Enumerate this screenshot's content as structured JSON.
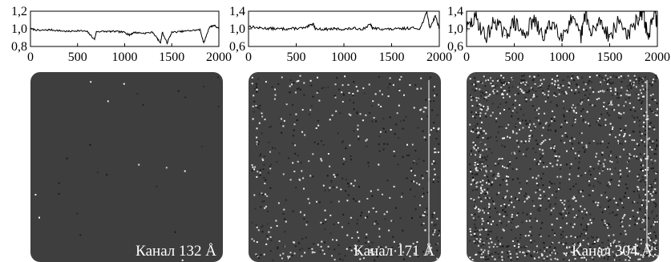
{
  "chart_data": [
    {
      "type": "line",
      "x_range": [
        0,
        2000
      ],
      "ylim": [
        0.8,
        1.2
      ],
      "yticks": [
        "1,2",
        "1,0",
        "0,8"
      ],
      "xticks": [
        "0",
        "500",
        "1000",
        "1500",
        "2000"
      ],
      "series": [
        {
          "x": [
            0,
            100,
            200,
            300,
            400,
            500,
            600,
            680,
            700,
            800,
            900,
            1000,
            1050,
            1100,
            1200,
            1300,
            1380,
            1400,
            1450,
            1500,
            1600,
            1700,
            1800,
            1840,
            1900,
            1950,
            2000
          ],
          "values": [
            1.0,
            0.98,
            0.99,
            0.98,
            0.97,
            0.98,
            0.97,
            0.88,
            0.97,
            0.97,
            0.97,
            0.96,
            0.93,
            0.96,
            0.95,
            0.96,
            0.84,
            0.96,
            0.84,
            0.96,
            0.97,
            0.98,
            0.99,
            0.84,
            1.02,
            1.04,
            1.0
          ]
        }
      ],
      "image_label": "Канал 132 Å"
    },
    {
      "type": "line",
      "x_range": [
        0,
        2000
      ],
      "ylim": [
        0.6,
        1.4
      ],
      "yticks": [
        "1,4",
        "1,0",
        "0,6"
      ],
      "xticks": [
        "0",
        "500",
        "1000",
        "1500",
        "2000"
      ],
      "series": [
        {
          "x": [
            0,
            100,
            200,
            300,
            400,
            500,
            600,
            680,
            700,
            800,
            900,
            1000,
            1100,
            1200,
            1280,
            1300,
            1400,
            1500,
            1600,
            1700,
            1800,
            1870,
            1900,
            1960,
            2000
          ],
          "values": [
            1.06,
            1.02,
            1.01,
            1.0,
            1.0,
            1.01,
            1.02,
            1.12,
            1.0,
            0.99,
            1.0,
            0.99,
            1.01,
            1.0,
            1.1,
            1.01,
            1.0,
            0.99,
            1.0,
            1.02,
            1.01,
            1.38,
            1.02,
            1.3,
            1.0
          ]
        }
      ],
      "image_label": "Канал 171 Å"
    },
    {
      "type": "line",
      "x_range": [
        0,
        2000
      ],
      "ylim": [
        0.6,
        1.4
      ],
      "yticks": [
        "1,4",
        "1,0",
        "0,6"
      ],
      "xticks": [
        "0",
        "500",
        "1000",
        "1500",
        "2000"
      ],
      "series": [
        {
          "x": [
            0,
            100,
            200,
            300,
            400,
            500,
            600,
            700,
            800,
            900,
            1000,
            1100,
            1200,
            1250,
            1300,
            1400,
            1500,
            1600,
            1700,
            1800,
            1850,
            1900,
            1980,
            2000
          ],
          "values": [
            1.0,
            1.25,
            0.8,
            1.2,
            0.85,
            1.15,
            0.85,
            1.2,
            0.82,
            1.15,
            0.85,
            1.2,
            0.82,
            1.4,
            0.85,
            1.2,
            0.82,
            1.18,
            0.85,
            1.25,
            1.4,
            0.82,
            1.38,
            1.0
          ]
        }
      ],
      "image_label": "Канал 304 Å"
    }
  ]
}
